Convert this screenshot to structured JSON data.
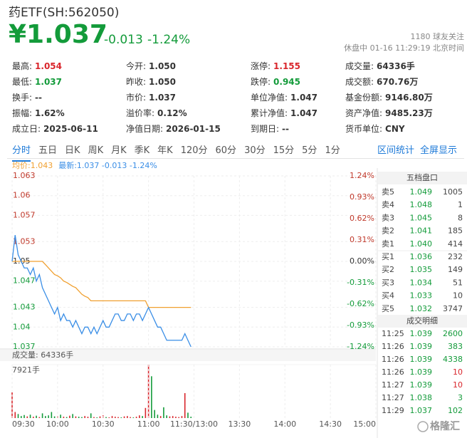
{
  "header": {
    "name": "药ETF(SH:562050)",
    "price": "¥1.037",
    "change": "-0.013",
    "change_pct": "-1.24%",
    "followers": "1180 球友关注",
    "status": "休盘中 01-16 11:29:19 北京时间",
    "color": "#139b3a"
  },
  "stats": [
    [
      {
        "label": "最高:",
        "value": "1.054",
        "color": "#d9262c"
      },
      {
        "label": "今开:",
        "value": "1.050"
      },
      {
        "label": "涨停:",
        "value": "1.155",
        "color": "#d9262c"
      },
      {
        "label": "成交量:",
        "value": "64336手"
      }
    ],
    [
      {
        "label": "最低:",
        "value": "1.037",
        "color": "#139b3a"
      },
      {
        "label": "昨收:",
        "value": "1.050"
      },
      {
        "label": "跌停:",
        "value": "0.945",
        "color": "#139b3a"
      },
      {
        "label": "成交额:",
        "value": "670.76万"
      }
    ],
    [
      {
        "label": "换手:",
        "value": "--"
      },
      {
        "label": "市价:",
        "value": "1.037"
      },
      {
        "label": "单位净值:",
        "value": "1.047"
      },
      {
        "label": "基金份额:",
        "value": "9146.80万"
      }
    ],
    [
      {
        "label": "振幅:",
        "value": "1.62%"
      },
      {
        "label": "溢价率:",
        "value": "0.12%"
      },
      {
        "label": "累计净值:",
        "value": "1.047"
      },
      {
        "label": "资产净值:",
        "value": "9485.23万"
      }
    ],
    [
      {
        "label": "成立日:",
        "value": "2025-06-11"
      },
      {
        "label": "净值日期:",
        "value": "2026-01-15"
      },
      {
        "label": "到期日:",
        "value": "--"
      },
      {
        "label": "货币单位:",
        "value": "CNY"
      }
    ]
  ],
  "tabs": {
    "items": [
      "分时",
      "五日",
      "日K",
      "周K",
      "月K",
      "季K",
      "年K",
      "120分",
      "60分",
      "30分",
      "15分",
      "5分",
      "1分"
    ],
    "active": 0,
    "right": [
      "区间统计",
      "全屏显示"
    ]
  },
  "chart_data": [
    {
      "type": "line",
      "x": [
        0,
        2,
        4,
        6,
        8,
        10,
        12,
        14,
        16,
        18,
        20,
        22,
        24,
        26,
        28,
        30,
        32,
        34,
        36,
        38,
        40,
        42,
        44,
        46,
        48,
        50,
        52,
        54,
        56,
        58,
        60,
        62,
        64,
        66,
        68,
        70,
        72,
        74,
        76,
        78,
        80,
        82,
        84,
        86,
        88,
        90,
        92,
        94,
        96,
        98,
        100,
        102,
        104,
        106,
        108,
        110,
        112,
        114,
        116,
        118
      ],
      "xlim": [
        0,
        240
      ],
      "xticks": [
        0,
        30,
        60,
        90,
        120,
        150,
        180,
        210,
        240
      ],
      "ylim": [
        1.037,
        1.063
      ],
      "yticks": [
        1.063,
        1.06,
        1.057,
        1.053,
        1.05,
        1.047,
        1.043,
        1.04,
        1.037
      ],
      "y2lim": [
        -1.24,
        1.24
      ],
      "y2ticks": [
        {
          "value": 1.24,
          "label": "1.24%"
        },
        {
          "value": 0.93,
          "label": "0.93%"
        },
        {
          "value": 0.62,
          "label": "0.62%"
        },
        {
          "value": 0.31,
          "label": "0.31%"
        },
        {
          "value": 0,
          "label": "0.00%"
        },
        {
          "value": -0.31,
          "label": "-0.31%"
        },
        {
          "value": -0.62,
          "label": "-0.62%"
        },
        {
          "value": -0.93,
          "label": "-0.93%"
        },
        {
          "value": -1.24,
          "label": "-1.24%"
        }
      ],
      "grid": true,
      "up_color": "#c0392b",
      "down_color": "#139b3a",
      "flat_color": "#333333",
      "series": [
        {
          "name": "均价:1.043",
          "color": "#f0a030",
          "values": [
            1.05,
            1.05,
            1.05,
            1.05,
            1.05,
            1.05,
            1.05,
            1.05,
            1.05,
            1.05,
            1.05,
            1.0495,
            1.049,
            1.0485,
            1.048,
            1.0478,
            1.0475,
            1.047,
            1.0468,
            1.0465,
            1.0462,
            1.046,
            1.0455,
            1.045,
            1.0447,
            1.0445,
            1.044,
            1.044,
            1.044,
            1.044,
            1.044,
            1.044,
            1.044,
            1.044,
            1.044,
            1.044,
            1.044,
            1.044,
            1.044,
            1.044,
            1.044,
            1.044,
            1.044,
            1.044,
            1.044,
            1.043,
            1.043,
            1.043,
            1.043,
            1.043,
            1.043,
            1.043,
            1.043,
            1.043,
            1.043,
            1.043,
            1.043,
            1.043,
            1.043,
            1.043
          ]
        },
        {
          "name": "最新:1.037 -0.013 -1.24%",
          "color": "#3a8ee6",
          "values": [
            1.05,
            1.054,
            1.051,
            1.05,
            1.049,
            1.049,
            1.048,
            1.049,
            1.047,
            1.048,
            1.046,
            1.045,
            1.044,
            1.043,
            1.042,
            1.043,
            1.041,
            1.042,
            1.041,
            1.041,
            1.04,
            1.041,
            1.04,
            1.039,
            1.04,
            1.04,
            1.039,
            1.04,
            1.039,
            1.04,
            1.041,
            1.04,
            1.04,
            1.041,
            1.042,
            1.042,
            1.041,
            1.041,
            1.042,
            1.042,
            1.041,
            1.042,
            1.042,
            1.041,
            1.042,
            1.043,
            1.042,
            1.041,
            1.04,
            1.04,
            1.039,
            1.038,
            1.038,
            1.038,
            1.038,
            1.038,
            1.038,
            1.039,
            1.038,
            1.037
          ]
        }
      ]
    },
    {
      "type": "bar",
      "title": "成交量: 64336手",
      "x": [
        0,
        2,
        4,
        6,
        8,
        10,
        12,
        14,
        16,
        18,
        20,
        22,
        24,
        26,
        28,
        30,
        32,
        34,
        36,
        38,
        40,
        42,
        44,
        46,
        48,
        50,
        52,
        54,
        56,
        58,
        60,
        62,
        64,
        66,
        68,
        70,
        72,
        74,
        76,
        78,
        80,
        82,
        84,
        86,
        88,
        90,
        92,
        94,
        96,
        98,
        100,
        102,
        104,
        106,
        108,
        110,
        112,
        114,
        116,
        118
      ],
      "values": [
        3800,
        900,
        600,
        300,
        450,
        250,
        500,
        200,
        350,
        150,
        700,
        300,
        400,
        900,
        250,
        300,
        500,
        200,
        150,
        350,
        600,
        250,
        200,
        150,
        300,
        200,
        700,
        150,
        100,
        250,
        400,
        150,
        100,
        300,
        200,
        150,
        100,
        250,
        300,
        150,
        100,
        200,
        400,
        300,
        1500,
        7921,
        6200,
        1200,
        500,
        300,
        1600,
        400,
        250,
        300,
        200,
        150,
        300,
        3700,
        800,
        200
      ],
      "xlim": [
        0,
        240
      ],
      "xticks": [
        {
          "value": 0,
          "label": "09:30"
        },
        {
          "value": 30,
          "label": "10:00"
        },
        {
          "value": 60,
          "label": "10:30"
        },
        {
          "value": 90,
          "label": "11:00"
        },
        {
          "value": 120,
          "label": "11:30/13:00"
        },
        {
          "value": 150,
          "label": "13:30"
        },
        {
          "value": 180,
          "label": "14:00"
        },
        {
          "value": 210,
          "label": "14:30"
        },
        {
          "value": 240,
          "label": "15:00"
        }
      ],
      "ylim": [
        0,
        7921
      ],
      "yticks": [
        {
          "value": 7921,
          "label": "7921手"
        }
      ],
      "up_color": "#d9262c",
      "down_color": "#139b3a"
    }
  ],
  "orderbook": {
    "title": "五档盘口",
    "rows": [
      {
        "label": "卖5",
        "price": "1.049",
        "volume": "1005"
      },
      {
        "label": "卖4",
        "price": "1.048",
        "volume": "1"
      },
      {
        "label": "卖3",
        "price": "1.045",
        "volume": "8"
      },
      {
        "label": "卖2",
        "price": "1.041",
        "volume": "185"
      },
      {
        "label": "卖1",
        "price": "1.040",
        "volume": "414"
      },
      {
        "label": "买1",
        "price": "1.036",
        "volume": "232"
      },
      {
        "label": "买2",
        "price": "1.035",
        "volume": "149"
      },
      {
        "label": "买3",
        "price": "1.034",
        "volume": "51"
      },
      {
        "label": "买4",
        "price": "1.033",
        "volume": "10"
      },
      {
        "label": "买5",
        "price": "1.032",
        "volume": "3747"
      }
    ]
  },
  "trades": {
    "title": "成交明细",
    "rows": [
      {
        "time": "11:25",
        "price": "1.039",
        "volume": "2600",
        "color": "#139b3a"
      },
      {
        "time": "11:26",
        "price": "1.039",
        "volume": "383",
        "color": "#139b3a"
      },
      {
        "time": "11:26",
        "price": "1.039",
        "volume": "4338",
        "color": "#139b3a"
      },
      {
        "time": "11:26",
        "price": "1.039",
        "volume": "10",
        "color": "#d9262c"
      },
      {
        "time": "11:27",
        "price": "1.039",
        "volume": "10",
        "color": "#d9262c"
      },
      {
        "time": "11:27",
        "price": "1.038",
        "volume": "3",
        "color": "#139b3a"
      },
      {
        "time": "11:29",
        "price": "1.037",
        "volume": "102",
        "color": "#139b3a"
      }
    ]
  },
  "watermark": "格隆汇"
}
